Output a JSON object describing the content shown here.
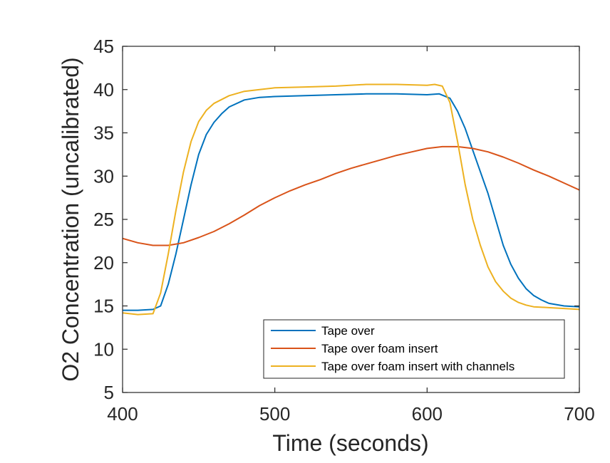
{
  "chart_data": {
    "type": "line",
    "title": "",
    "xlabel": "Time (seconds)",
    "ylabel": "O2 Concentration (uncalibrated)",
    "xlim": [
      400,
      700
    ],
    "ylim": [
      5,
      45
    ],
    "xticks": [
      400,
      500,
      600,
      700
    ],
    "yticks": [
      5,
      10,
      15,
      20,
      25,
      30,
      35,
      40,
      45
    ],
    "grid": false,
    "legend_position": "bottom-right",
    "series": [
      {
        "name": "Tape over",
        "color": "#0072BD",
        "x": [
          400,
          410,
          420,
          425,
          430,
          435,
          440,
          445,
          450,
          455,
          460,
          465,
          470,
          480,
          490,
          500,
          520,
          540,
          560,
          580,
          600,
          608,
          615,
          620,
          625,
          630,
          635,
          640,
          645,
          650,
          655,
          660,
          665,
          670,
          675,
          680,
          690,
          700
        ],
        "y": [
          14.5,
          14.5,
          14.6,
          15.0,
          17.5,
          21.0,
          25.0,
          29.0,
          32.5,
          34.8,
          36.2,
          37.2,
          38.0,
          38.8,
          39.1,
          39.2,
          39.3,
          39.4,
          39.5,
          39.5,
          39.4,
          39.5,
          39.0,
          37.5,
          35.5,
          33.0,
          30.5,
          28.0,
          25.0,
          22.0,
          19.8,
          18.2,
          17.0,
          16.2,
          15.7,
          15.3,
          15.0,
          14.9
        ]
      },
      {
        "name": "Tape over foam insert",
        "color": "#D95319",
        "x": [
          400,
          410,
          420,
          430,
          440,
          450,
          460,
          470,
          480,
          490,
          500,
          510,
          520,
          530,
          540,
          550,
          560,
          570,
          580,
          590,
          600,
          610,
          620,
          630,
          640,
          650,
          660,
          670,
          680,
          690,
          700
        ],
        "y": [
          22.8,
          22.3,
          22.0,
          22.0,
          22.3,
          22.9,
          23.6,
          24.5,
          25.5,
          26.6,
          27.5,
          28.3,
          29.0,
          29.6,
          30.3,
          30.9,
          31.4,
          31.9,
          32.4,
          32.8,
          33.2,
          33.4,
          33.4,
          33.2,
          32.8,
          32.2,
          31.5,
          30.7,
          30.0,
          29.2,
          28.4
        ]
      },
      {
        "name": "Tape over foam insert with channels",
        "color": "#EDB120",
        "x": [
          400,
          410,
          420,
          425,
          430,
          435,
          440,
          445,
          450,
          455,
          460,
          470,
          480,
          490,
          500,
          520,
          540,
          560,
          580,
          600,
          605,
          610,
          615,
          620,
          625,
          630,
          635,
          640,
          645,
          650,
          655,
          660,
          665,
          670,
          680,
          690,
          700
        ],
        "y": [
          14.2,
          14.0,
          14.1,
          16.5,
          21.0,
          26.0,
          30.5,
          34.0,
          36.3,
          37.6,
          38.4,
          39.3,
          39.8,
          40.0,
          40.2,
          40.3,
          40.4,
          40.6,
          40.6,
          40.5,
          40.6,
          40.4,
          38.5,
          34.0,
          29.0,
          25.0,
          22.0,
          19.5,
          17.8,
          16.7,
          15.9,
          15.4,
          15.1,
          14.9,
          14.8,
          14.7,
          14.6
        ]
      }
    ]
  }
}
